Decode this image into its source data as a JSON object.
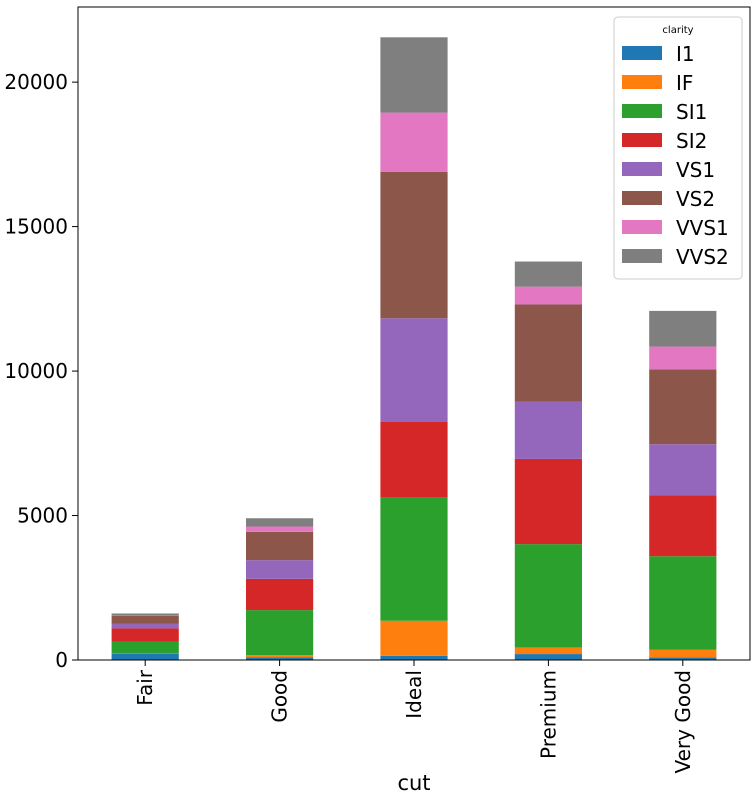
{
  "chart_data": {
    "type": "bar",
    "stacked": true,
    "xlabel": "cut",
    "ylabel": "",
    "categories": [
      "Fair",
      "Good",
      "Ideal",
      "Premium",
      "Very Good"
    ],
    "ylim": [
      0,
      22600
    ],
    "yticks": [
      0,
      5000,
      10000,
      15000,
      20000
    ],
    "legend": {
      "title": "clarity",
      "placement": "top-right"
    },
    "series": [
      {
        "name": "I1",
        "color": "#1f77b4",
        "values": [
          210,
          96,
          146,
          205,
          84
        ]
      },
      {
        "name": "IF",
        "color": "#ff7f0e",
        "values": [
          9,
          71,
          1212,
          230,
          268
        ]
      },
      {
        "name": "SI1",
        "color": "#2ca02c",
        "values": [
          408,
          1560,
          4282,
          3575,
          3240
        ]
      },
      {
        "name": "SI2",
        "color": "#d62728",
        "values": [
          466,
          1081,
          2598,
          2949,
          2100
        ]
      },
      {
        "name": "VS1",
        "color": "#9467bd",
        "values": [
          170,
          648,
          3589,
          1989,
          1775
        ]
      },
      {
        "name": "VS2",
        "color": "#8c564b",
        "values": [
          261,
          978,
          5071,
          3357,
          2591
        ]
      },
      {
        "name": "VVS1",
        "color": "#e377c2",
        "values": [
          17,
          186,
          2047,
          616,
          789
        ]
      },
      {
        "name": "VVS2",
        "color": "#7f7f7f",
        "values": [
          69,
          286,
          2606,
          870,
          1235
        ]
      }
    ]
  }
}
